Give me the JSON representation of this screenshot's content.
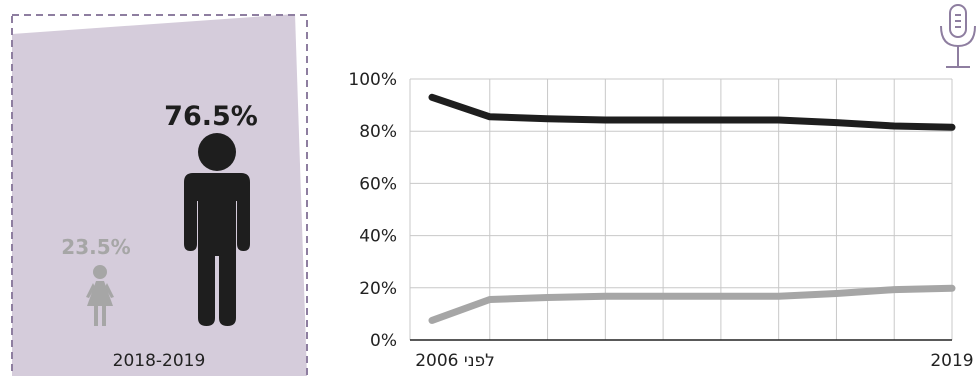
{
  "colors": {
    "men": "#1e1e1e",
    "women": "#a6a6a6",
    "panel": "#d5ccdb",
    "panel_border": "#8e7ea0",
    "grid": "#c8c8c8",
    "axis": "#222222",
    "icon": "#8e7ea0"
  },
  "icons": {
    "podcast": "microphone-icon",
    "man": "man-icon",
    "woman": "woman-icon"
  },
  "panel": {
    "men_pct": "76.5%",
    "women_pct": "23.5%",
    "period": "2018-2019"
  },
  "chart_data": {
    "type": "line",
    "ylim": [
      0,
      100
    ],
    "yticks": [
      "0%",
      "20%",
      "40%",
      "60%",
      "80%",
      "100%"
    ],
    "x_labels": {
      "start": "לפני 2006",
      "end": "2019"
    },
    "grid": true,
    "series": [
      {
        "values": [
          93,
          85.5,
          84.8,
          84.3,
          84.3,
          84.3,
          84.3,
          83.3,
          82,
          81.5
        ]
      },
      {
        "values": [
          7.5,
          15.5,
          16.3,
          16.8,
          16.8,
          16.8,
          16.8,
          17.8,
          19.3,
          19.8
        ]
      }
    ]
  }
}
